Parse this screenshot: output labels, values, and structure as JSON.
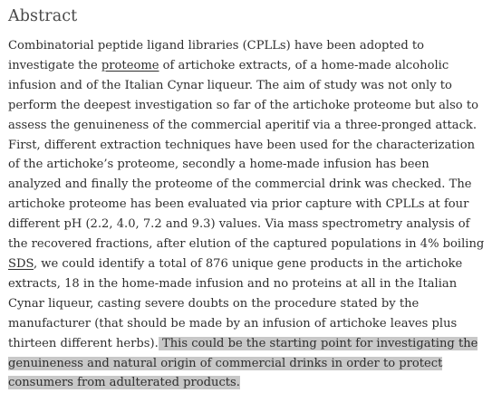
{
  "abstract": {
    "heading": "Abstract",
    "segment_1": "Combinatorial peptide ligand libraries (CPLLs) have been adopted to investigate the ",
    "link_proteome": "proteome",
    "segment_2": " of artichoke extracts, of a home-made alcoholic infusion and of the Italian Cynar liqueur. The aim of study was not only to perform the deepest investigation so far of the artichoke proteome but also to assess the genuineness of the commercial aperitif via a three-pronged attack. First, different extraction techniques have been used for the characterization of the artichoke’s proteome, secondly a home-made infusion has been analyzed and finally the proteome of the commercial drink was checked. The artichoke proteome has been evaluated via prior capture with CPLLs at four different pH (2.2, 4.0, 7.2 and 9.3) values. Via mass spectrometry analysis of the recovered fractions, after elution of the captured populations in 4% boiling ",
    "link_sds": "SDS",
    "segment_3": ", we could identify a total of 876 unique gene products in the artichoke extracts, 18 in the home-made infusion and no proteins at all in the Italian Cynar liqueur, casting severe doubts on the procedure stated by the manufacturer (that should be made by an infusion of artichoke leaves plus thirteen different herbs).",
    "highlighted_sentence": " This could be the starting point for investigating the genuineness and natural origin of commercial drinks in order to protect consumers from adulterated products."
  },
  "colors": {
    "text": "#2e2e2e",
    "heading": "#4a4a4a",
    "highlight": "#c8c8c8",
    "background": "#ffffff"
  }
}
